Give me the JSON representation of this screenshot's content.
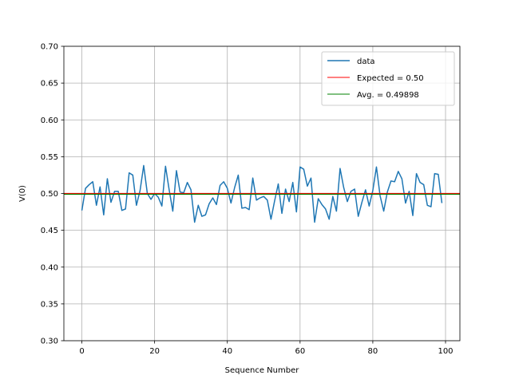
{
  "chart_data": {
    "type": "line",
    "title": "",
    "xlabel": "Sequence Number",
    "ylabel": "V(0)",
    "xlim": [
      -4.95,
      103.95
    ],
    "ylim": [
      0.3,
      0.7
    ],
    "xticks": [
      0,
      20,
      40,
      60,
      80,
      100
    ],
    "xtick_labels": [
      "0",
      "20",
      "40",
      "60",
      "80",
      "100"
    ],
    "yticks": [
      0.3,
      0.35,
      0.4,
      0.45,
      0.5,
      0.55,
      0.6,
      0.65,
      0.7
    ],
    "ytick_labels": [
      "0.30",
      "0.35",
      "0.40",
      "0.45",
      "0.50",
      "0.55",
      "0.60",
      "0.65",
      "0.70"
    ],
    "grid": true,
    "legend_position": "top-right",
    "series": [
      {
        "name": "data",
        "color": "#1f77b4",
        "x_start": 0,
        "values": [
          0.477,
          0.507,
          0.512,
          0.516,
          0.484,
          0.509,
          0.471,
          0.52,
          0.488,
          0.503,
          0.503,
          0.477,
          0.479,
          0.528,
          0.525,
          0.484,
          0.504,
          0.538,
          0.5,
          0.492,
          0.5,
          0.495,
          0.483,
          0.537,
          0.505,
          0.476,
          0.531,
          0.502,
          0.501,
          0.515,
          0.505,
          0.461,
          0.484,
          0.469,
          0.471,
          0.486,
          0.494,
          0.485,
          0.511,
          0.516,
          0.507,
          0.487,
          0.508,
          0.525,
          0.48,
          0.481,
          0.478,
          0.521,
          0.491,
          0.494,
          0.496,
          0.491,
          0.465,
          0.49,
          0.513,
          0.473,
          0.506,
          0.489,
          0.515,
          0.475,
          0.536,
          0.533,
          0.51,
          0.521,
          0.461,
          0.493,
          0.485,
          0.479,
          0.465,
          0.496,
          0.476,
          0.534,
          0.508,
          0.489,
          0.503,
          0.506,
          0.469,
          0.488,
          0.505,
          0.483,
          0.504,
          0.536,
          0.497,
          0.476,
          0.502,
          0.517,
          0.516,
          0.53,
          0.52,
          0.487,
          0.503,
          0.47,
          0.527,
          0.515,
          0.512,
          0.484,
          0.482,
          0.527,
          0.526,
          0.487
        ]
      },
      {
        "name": "Expected = 0.50",
        "color": "#ff0000",
        "hline": 0.5
      },
      {
        "name": "Avg. = 0.49898",
        "color": "#008000",
        "hline": 0.49898
      }
    ]
  }
}
